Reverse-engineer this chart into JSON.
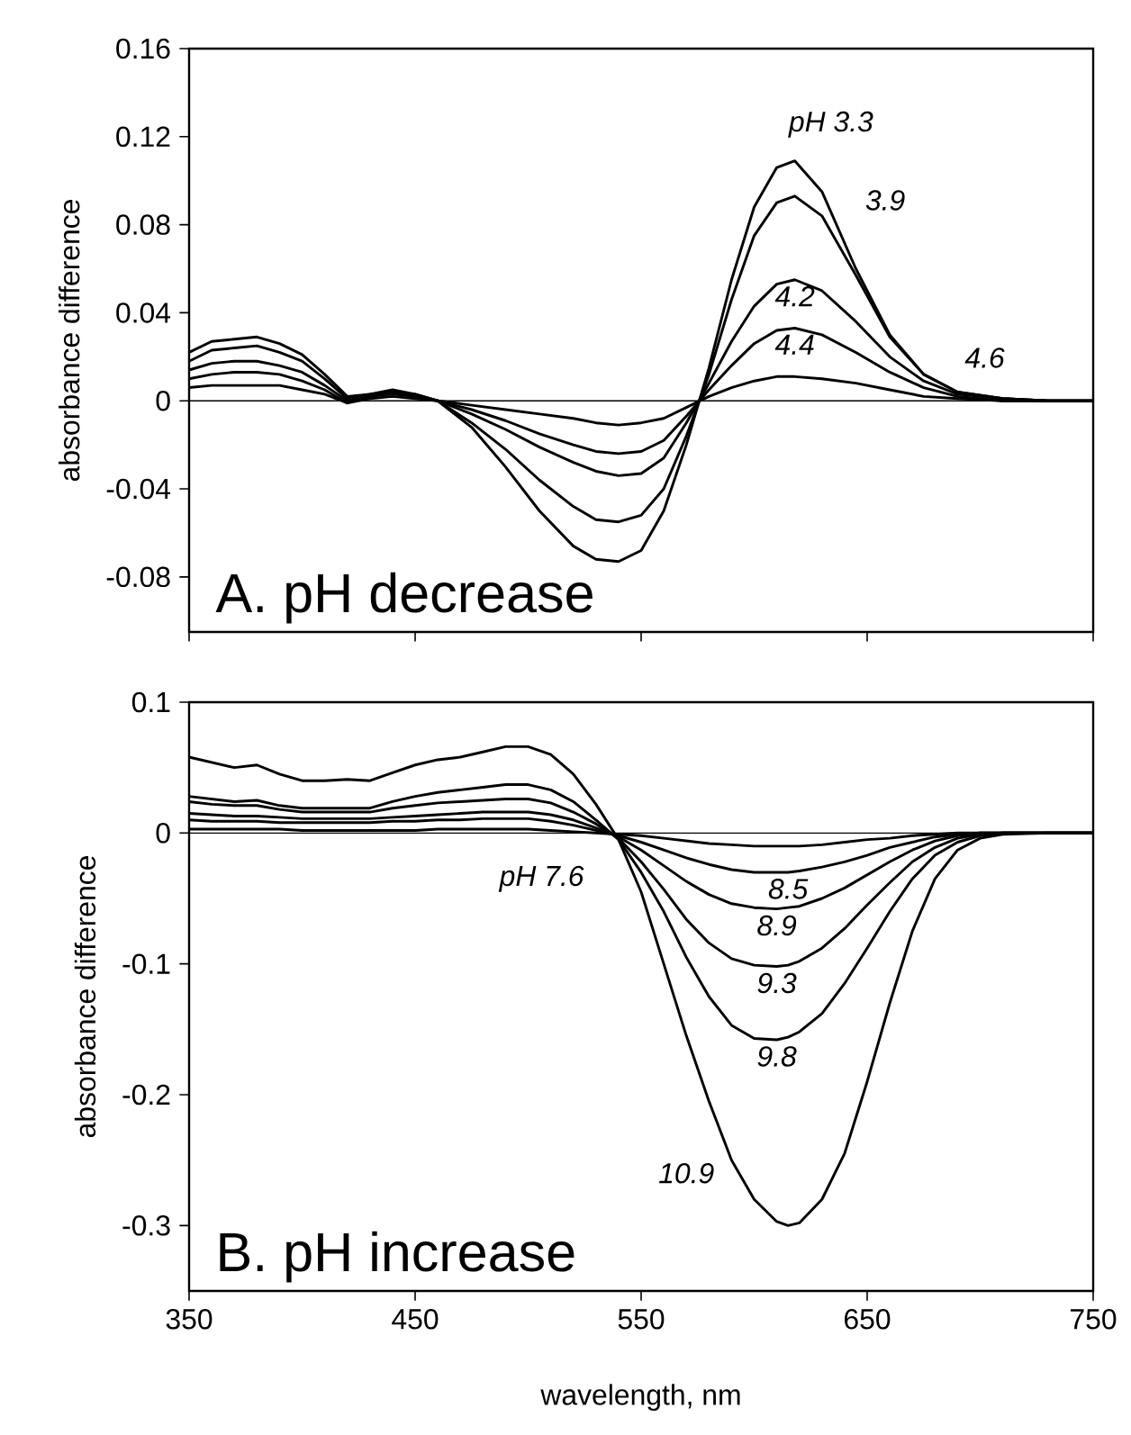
{
  "chart_data": [
    {
      "type": "line",
      "title": "A. pH decrease",
      "ylabel": "absorbance difference",
      "x": [
        350,
        360,
        370,
        380,
        390,
        400,
        410,
        420,
        430,
        440,
        450,
        460,
        475,
        490,
        505,
        520,
        530,
        540,
        550,
        560,
        570,
        580,
        590,
        600,
        610,
        618,
        630,
        645,
        660,
        675,
        690,
        710,
        730,
        750
      ],
      "series": [
        {
          "name": "pH 3.3",
          "color": "#000000",
          "values": [
            0.022,
            0.027,
            0.028,
            0.029,
            0.026,
            0.021,
            0.012,
            0.002,
            0.003,
            0.005,
            0.003,
            0.0,
            -0.012,
            -0.03,
            -0.05,
            -0.066,
            -0.072,
            -0.073,
            -0.068,
            -0.05,
            -0.02,
            0.015,
            0.055,
            0.088,
            0.106,
            0.109,
            0.095,
            0.06,
            0.03,
            0.012,
            0.004,
            0.001,
            0.0,
            0.0
          ]
        },
        {
          "name": "3.9",
          "color": "#000000",
          "values": [
            0.018,
            0.023,
            0.024,
            0.025,
            0.022,
            0.018,
            0.01,
            0.001,
            0.003,
            0.004,
            0.003,
            0.0,
            -0.01,
            -0.022,
            -0.036,
            -0.048,
            -0.054,
            -0.055,
            -0.052,
            -0.04,
            -0.016,
            0.012,
            0.046,
            0.075,
            0.09,
            0.093,
            0.084,
            0.057,
            0.029,
            0.012,
            0.004,
            0.001,
            0.0,
            0.0
          ]
        },
        {
          "name": "4.2",
          "color": "#000000",
          "values": [
            0.014,
            0.017,
            0.018,
            0.018,
            0.016,
            0.013,
            0.007,
            0.0,
            0.002,
            0.004,
            0.002,
            0.0,
            -0.006,
            -0.013,
            -0.021,
            -0.028,
            -0.032,
            -0.034,
            -0.033,
            -0.026,
            -0.01,
            0.008,
            0.027,
            0.043,
            0.053,
            0.055,
            0.05,
            0.036,
            0.02,
            0.009,
            0.003,
            0.001,
            0.0,
            0.0
          ]
        },
        {
          "name": "4.4",
          "color": "#000000",
          "values": [
            0.01,
            0.012,
            0.013,
            0.013,
            0.012,
            0.009,
            0.005,
            -0.001,
            0.002,
            0.003,
            0.002,
            0.0,
            -0.004,
            -0.009,
            -0.015,
            -0.02,
            -0.023,
            -0.024,
            -0.023,
            -0.018,
            -0.007,
            0.005,
            0.016,
            0.026,
            0.032,
            0.033,
            0.03,
            0.022,
            0.013,
            0.006,
            0.002,
            0.0,
            0.0,
            0.0
          ]
        },
        {
          "name": "4.6",
          "color": "#000000",
          "values": [
            0.006,
            0.007,
            0.007,
            0.007,
            0.007,
            0.005,
            0.003,
            -0.001,
            0.001,
            0.002,
            0.001,
            0.0,
            -0.002,
            -0.004,
            -0.006,
            -0.008,
            -0.01,
            -0.011,
            -0.01,
            -0.008,
            -0.003,
            0.002,
            0.006,
            0.009,
            0.011,
            0.011,
            0.01,
            0.008,
            0.005,
            0.002,
            0.001,
            0.0,
            0.0,
            0.0
          ]
        }
      ],
      "xlim": [
        350,
        750
      ],
      "xticks": [
        350,
        450,
        550,
        650,
        750
      ],
      "ylim": [
        -0.105,
        0.16
      ],
      "yticks": [
        -0.08,
        -0.04,
        0,
        0.04,
        0.08,
        0.12,
        0.16
      ],
      "tick_labels": "y",
      "ref_lines": [
        {
          "axis": "y",
          "value": 0
        }
      ],
      "line_style": "solid",
      "marker": "none"
    },
    {
      "type": "line",
      "title": "B. pH increase",
      "xlabel": "wavelength, nm",
      "ylabel": "absorbance difference",
      "x": [
        350,
        360,
        370,
        380,
        390,
        400,
        410,
        420,
        430,
        440,
        450,
        460,
        470,
        480,
        490,
        500,
        510,
        520,
        530,
        540,
        550,
        560,
        570,
        580,
        590,
        600,
        610,
        615,
        620,
        630,
        640,
        650,
        660,
        670,
        680,
        690,
        700,
        710,
        730,
        750
      ],
      "series": [
        {
          "name": "pH 7.6",
          "color": "#000000",
          "values": [
            0.003,
            0.003,
            0.003,
            0.003,
            0.003,
            0.002,
            0.002,
            0.002,
            0.002,
            0.002,
            0.002,
            0.003,
            0.003,
            0.003,
            0.003,
            0.003,
            0.002,
            0.001,
            0.0,
            -0.001,
            -0.002,
            -0.004,
            -0.006,
            -0.008,
            -0.009,
            -0.01,
            -0.01,
            -0.01,
            -0.01,
            -0.009,
            -0.007,
            -0.005,
            -0.004,
            -0.002,
            -0.001,
            0.0,
            0.0,
            0.0,
            0.0,
            0.0
          ]
        },
        {
          "name": "8.5",
          "color": "#000000",
          "values": [
            0.01,
            0.009,
            0.009,
            0.009,
            0.008,
            0.008,
            0.008,
            0.008,
            0.008,
            0.009,
            0.009,
            0.01,
            0.01,
            0.011,
            0.011,
            0.011,
            0.009,
            0.006,
            0.002,
            -0.002,
            -0.007,
            -0.013,
            -0.019,
            -0.024,
            -0.028,
            -0.03,
            -0.03,
            -0.03,
            -0.029,
            -0.026,
            -0.022,
            -0.017,
            -0.011,
            -0.007,
            -0.003,
            -0.001,
            0.0,
            0.0,
            0.0,
            0.0
          ]
        },
        {
          "name": "8.9",
          "color": "#000000",
          "values": [
            0.015,
            0.014,
            0.013,
            0.013,
            0.012,
            0.011,
            0.011,
            0.011,
            0.011,
            0.012,
            0.013,
            0.014,
            0.015,
            0.016,
            0.016,
            0.016,
            0.014,
            0.01,
            0.004,
            -0.003,
            -0.013,
            -0.025,
            -0.037,
            -0.047,
            -0.054,
            -0.057,
            -0.058,
            -0.057,
            -0.056,
            -0.05,
            -0.042,
            -0.032,
            -0.022,
            -0.013,
            -0.006,
            -0.002,
            0.0,
            0.0,
            0.0,
            0.0
          ]
        },
        {
          "name": "9.3",
          "color": "#000000",
          "values": [
            0.024,
            0.022,
            0.021,
            0.021,
            0.018,
            0.016,
            0.016,
            0.016,
            0.016,
            0.019,
            0.021,
            0.023,
            0.024,
            0.025,
            0.026,
            0.026,
            0.023,
            0.016,
            0.007,
            -0.004,
            -0.022,
            -0.043,
            -0.066,
            -0.084,
            -0.096,
            -0.101,
            -0.102,
            -0.101,
            -0.098,
            -0.088,
            -0.073,
            -0.055,
            -0.038,
            -0.022,
            -0.011,
            -0.004,
            -0.001,
            0.0,
            0.0,
            0.0
          ]
        },
        {
          "name": "9.8",
          "color": "#000000",
          "values": [
            0.028,
            0.026,
            0.024,
            0.025,
            0.021,
            0.019,
            0.019,
            0.019,
            0.019,
            0.024,
            0.028,
            0.031,
            0.033,
            0.035,
            0.037,
            0.037,
            0.033,
            0.024,
            0.01,
            -0.005,
            -0.03,
            -0.06,
            -0.095,
            -0.125,
            -0.147,
            -0.157,
            -0.158,
            -0.156,
            -0.152,
            -0.138,
            -0.115,
            -0.088,
            -0.06,
            -0.035,
            -0.017,
            -0.007,
            -0.002,
            0.0,
            0.0,
            0.0
          ]
        },
        {
          "name": "10.9",
          "color": "#000000",
          "values": [
            0.058,
            0.054,
            0.05,
            0.052,
            0.045,
            0.04,
            0.04,
            0.041,
            0.04,
            0.046,
            0.052,
            0.056,
            0.058,
            0.062,
            0.066,
            0.066,
            0.06,
            0.045,
            0.022,
            -0.005,
            -0.045,
            -0.1,
            -0.155,
            -0.205,
            -0.25,
            -0.28,
            -0.297,
            -0.3,
            -0.298,
            -0.28,
            -0.245,
            -0.19,
            -0.13,
            -0.075,
            -0.035,
            -0.013,
            -0.004,
            -0.001,
            0.0,
            0.0
          ]
        }
      ],
      "xlim": [
        350,
        750
      ],
      "xticks": [
        350,
        450,
        550,
        650,
        750
      ],
      "ylim": [
        -0.35,
        0.1
      ],
      "yticks": [
        -0.3,
        -0.2,
        -0.1,
        0,
        0.1
      ],
      "ref_lines": [
        {
          "axis": "y",
          "value": 0
        }
      ],
      "line_style": "solid",
      "marker": "none"
    }
  ]
}
